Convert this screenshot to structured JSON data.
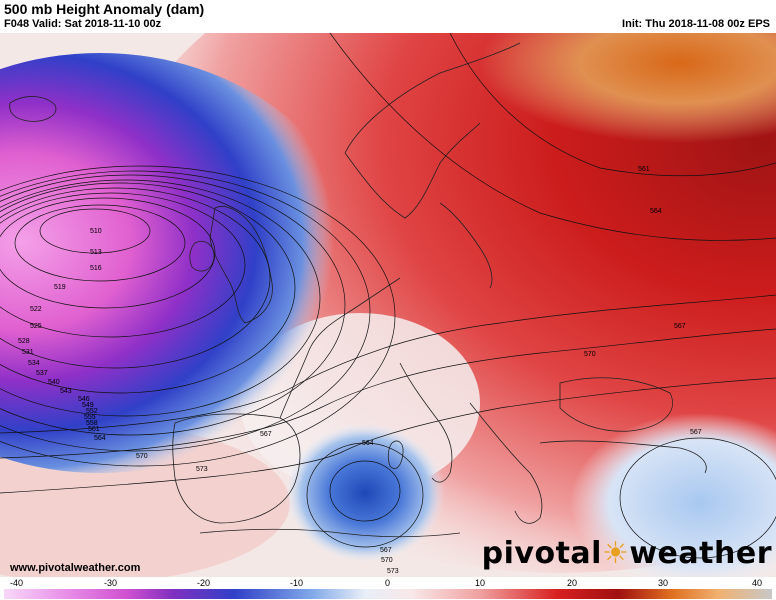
{
  "header": {
    "title": "500 mb Height Anomaly (dam)",
    "valid": "F048 Valid: Sat 2018-11-10 00z",
    "init": "Init: Thu 2018-11-08 00z EPS"
  },
  "footer": {
    "website": "www.pivotalweather.com",
    "brand_left": "pivotal",
    "brand_right": "weather"
  },
  "colors": {
    "low_strong": "#d040c0",
    "low_pink": "#f090e0",
    "low_blue": "#3050d0",
    "neutral": "#f6f0ee",
    "high_red": "#d82020",
    "high_dark": "#a81818",
    "high_orange": "#d87020"
  },
  "contours": {
    "labels": [
      "510",
      "513",
      "516",
      "519",
      "522",
      "525",
      "528",
      "531",
      "534",
      "537",
      "540",
      "543",
      "546",
      "549",
      "552",
      "555",
      "558",
      "561",
      "564",
      "567",
      "570",
      "573",
      "564",
      "567",
      "570",
      "573",
      "561",
      "564",
      "567",
      "570",
      "567"
    ]
  },
  "colorbar": {
    "ticks": [
      "-40",
      "-30",
      "-20",
      "-10",
      "0",
      "10",
      "20",
      "30",
      "40"
    ]
  }
}
